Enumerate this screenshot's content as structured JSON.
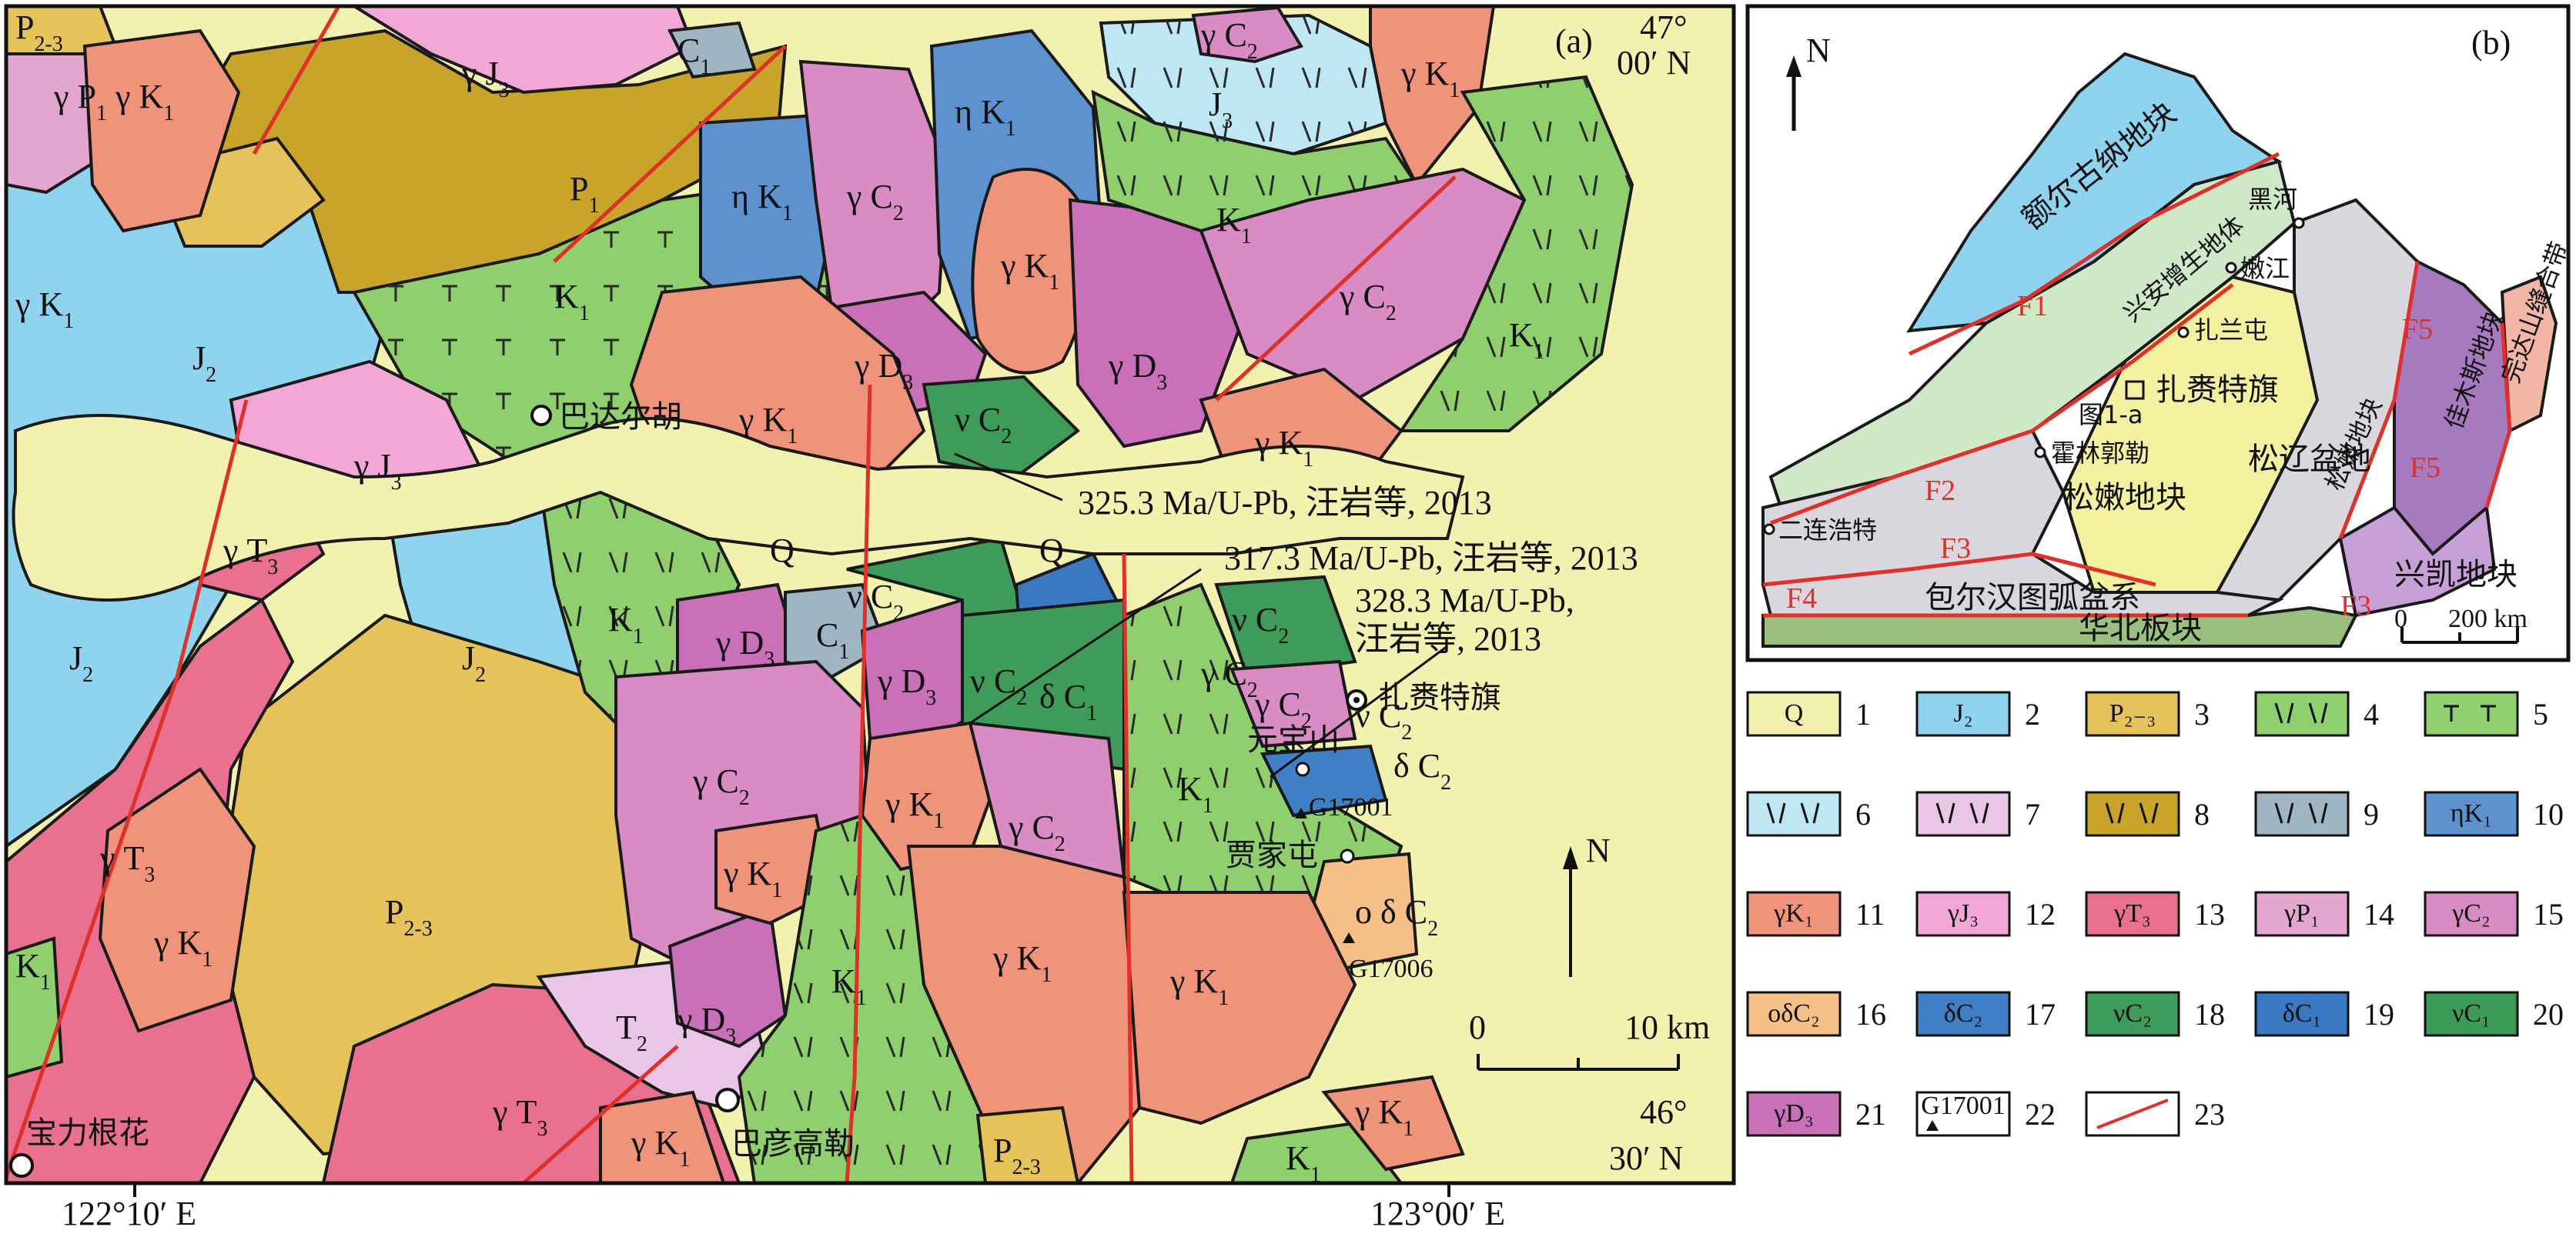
{
  "panel_a": {
    "tag": "(a)",
    "coord_ne_lat": "47°",
    "coord_ne_min": "00′ N",
    "coord_se_lat": "46°",
    "coord_se_min": "30′ N",
    "lon_left": "122°10′ E",
    "lon_right": "123°00′ E",
    "north": "N",
    "scale_0": "0",
    "scale_10": "10 km",
    "places": {
      "badaerhu": "巴达尔胡",
      "baoligenhua": "宝力根花",
      "bayangaole": "巴彦高勒",
      "zalaiteqi": "扎赉特旗",
      "yuanbaoshan": "元宝山",
      "jiajiatun": "贾家屯"
    },
    "ages": {
      "a1": "325.3 Ma/U-Pb, 汪岩等, 2013",
      "a2": "317.3 Ma/U-Pb, 汪岩等, 2013",
      "a3_line1": "328.3 Ma/U-Pb,",
      "a3_line2": "汪岩等, 2013"
    },
    "samples": {
      "s1": "G17001",
      "s2": "G17006"
    }
  },
  "panel_b": {
    "tag": "(b)",
    "north": "N",
    "scale_0": "0",
    "scale_200": "200 km",
    "units": {
      "erguna": "额尔古纳地块",
      "xingan": "兴安增生地体",
      "songnen_v": "松嫩地块",
      "songnen_h": "松嫩地块",
      "songliao": "松辽盆地",
      "jiamusi": "佳木斯地块",
      "wandashan": "完达山缝合带",
      "xingkai": "兴凯地块",
      "baoerhantu": "包尔汉图弧盆系",
      "huabei": "华北板块"
    },
    "towns": {
      "heihe": "黑河",
      "nenjiang": "嫩江",
      "zhalantun": "扎兰屯",
      "zalaiteqi": "扎赉特旗",
      "huolinguole": "霍林郭勒",
      "erlianhaote": "二连浩特",
      "fig1a": "图1-a"
    },
    "faults": [
      "F1",
      "F2",
      "F3",
      "F3",
      "F4",
      "F5",
      "F5"
    ]
  },
  "legend": [
    {
      "num": "1",
      "label": "Q",
      "color": "#f3f1b0"
    },
    {
      "num": "2",
      "label": "J₂",
      "color": "#8fd3ef"
    },
    {
      "num": "3",
      "label": "P₂₋₃",
      "color": "#e6c35a"
    },
    {
      "num": "4",
      "label": "",
      "color": "#8fcf6e"
    },
    {
      "num": "5",
      "label": "",
      "color": "#8fcf6e"
    },
    {
      "num": "6",
      "label": "",
      "color": "#bfe6f3"
    },
    {
      "num": "7",
      "label": "",
      "color": "#e9c6e6"
    },
    {
      "num": "8",
      "label": "",
      "color": "#c9a42a"
    },
    {
      "num": "9",
      "label": "",
      "color": "#9fb5c2"
    },
    {
      "num": "10",
      "label": "ηK₁",
      "color": "#5d92cf"
    },
    {
      "num": "11",
      "label": "γK₁",
      "color": "#ef947b"
    },
    {
      "num": "12",
      "label": "γJ₃",
      "color": "#f2a7d6"
    },
    {
      "num": "13",
      "label": "γT₃",
      "color": "#e9708f"
    },
    {
      "num": "14",
      "label": "γP₁",
      "color": "#e2a6cf"
    },
    {
      "num": "15",
      "label": "γC₂",
      "color": "#d98cc4"
    },
    {
      "num": "16",
      "label": "οδC₂",
      "color": "#f5c088"
    },
    {
      "num": "17",
      "label": "δC₂",
      "color": "#3f7fc6"
    },
    {
      "num": "18",
      "label": "νC₂",
      "color": "#3f9b5a"
    },
    {
      "num": "19",
      "label": "δC₁",
      "color": "#3b78c4"
    },
    {
      "num": "20",
      "label": "νC₁",
      "color": "#3d9a57"
    },
    {
      "num": "21",
      "label": "γD₃",
      "color": "#c970b8"
    },
    {
      "num": "22",
      "label": "G17001",
      "color": "#ffffff"
    },
    {
      "num": "23",
      "label": "",
      "color": "#ffffff"
    }
  ]
}
